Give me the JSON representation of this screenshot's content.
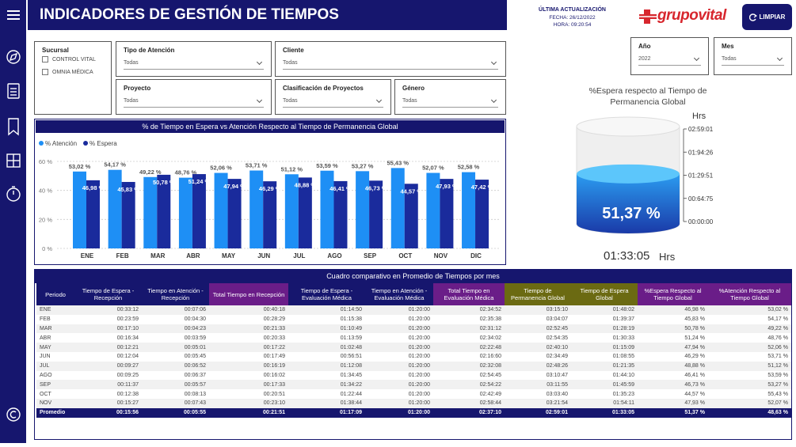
{
  "header": {
    "title": "INDICADORES DE GESTIÓN DE TIEMPOS",
    "update_title": "ÚLTIMA ACTUALIZACIÓN",
    "update_date": "FECHA: 26/12/2022",
    "update_time": "HORA: 09:20:54",
    "logo": "grupovital",
    "button": "LIMPIAR"
  },
  "filters": [
    {
      "label": "Sucursal",
      "options": [
        "CONTROL VITAL",
        "OMNIA MÉDICA"
      ]
    },
    {
      "label": "Tipo de Atención",
      "value": "Todas"
    },
    {
      "label": "Cliente",
      "value": "Todas"
    },
    {
      "label": "Proyecto",
      "value": "Todas"
    },
    {
      "label": "Clasificación de Proyectos",
      "value": "Todas"
    },
    {
      "label": "Género",
      "value": "Todas"
    },
    {
      "label": "Año",
      "value": "2022"
    },
    {
      "label": "Mes",
      "value": "Todas"
    }
  ],
  "chart_data": {
    "type": "bar",
    "title": "% de Tiempo en Espera vs Atención Respecto al Tiempo de Permanencia Global",
    "categories": [
      "ENE",
      "FEB",
      "MAR",
      "ABR",
      "MAY",
      "JUN",
      "JUL",
      "AGO",
      "SEP",
      "OCT",
      "NOV",
      "DIC"
    ],
    "series": [
      {
        "name": "% Atención",
        "color": "#1e8ff5",
        "values": [
          53.02,
          54.17,
          49.22,
          48.76,
          52.06,
          53.71,
          51.12,
          53.59,
          53.27,
          55.43,
          52.07,
          52.58
        ],
        "value_labels": [
          "53,02 %",
          "54,17 %",
          "49,22 %",
          "48,76 %",
          "52,06 %",
          "53,71 %",
          "51,12 %",
          "53,59 %",
          "53,27 %",
          "55,43 %",
          "52,07 %",
          "52,58 %"
        ]
      },
      {
        "name": "% Espera",
        "color": "#1a2b9c",
        "values": [
          46.98,
          45.83,
          50.78,
          51.24,
          47.94,
          46.29,
          48.88,
          46.41,
          46.73,
          44.57,
          47.93,
          47.42
        ],
        "value_labels": [
          "46,98 %",
          "45,83 %",
          "50,78 %",
          "51,24 %",
          "47,94 %",
          "46,29 %",
          "48,88 %",
          "46,41 %",
          "46,73 %",
          "44,57 %",
          "47,93 %",
          "47,42 %"
        ]
      }
    ],
    "ylim": [
      0,
      66
    ],
    "yticks": [
      {
        "value": 0,
        "label": "0 %"
      },
      {
        "value": 20,
        "label": "20 %"
      },
      {
        "value": 40,
        "label": "40 %"
      },
      {
        "value": 60,
        "label": "60 %"
      }
    ],
    "grid": true,
    "legend": "top-left"
  },
  "gauge": {
    "title": "%Espera respecto al Tiempo de Permanencia Global",
    "unit": "Hrs",
    "ticks": [
      "02:59:01",
      "01:94:26",
      "01:29:51",
      "00:64:75",
      "00:00:00"
    ],
    "value": 51.37,
    "value_label": "51,37 %",
    "total": "01:33:05",
    "total_unit": "Hrs"
  },
  "table": {
    "title": "Cuadro comparativo en Promedio de Tiempos por mes",
    "headers": [
      "Periodo",
      "Tiempo de Espera - Recepción",
      "Tiempo en Atención - Recepción",
      "Total Tiempo en Recepción",
      "Tiempo de Espera - Evaluación Médica",
      "Tiempo en Atención - Evaluación Médica",
      "Total Tiempo en Evaluación Médica",
      "Tiempo de Permanencia Global",
      "Tiempo de Espera Global",
      "%Espera Respecto al Tiempo Global",
      "%Atención Respecto al Tiempo Global"
    ],
    "rows": [
      [
        "ENE",
        "00:33:12",
        "00:07:06",
        "00:40:18",
        "01:14:50",
        "01:20:00",
        "02:34:52",
        "03:15:10",
        "01:48:02",
        "46,98 %",
        "53,02 %"
      ],
      [
        "FEB",
        "00:23:59",
        "00:04:30",
        "00:28:29",
        "01:15:38",
        "01:20:00",
        "02:35:38",
        "03:04:07",
        "01:39:37",
        "45,83 %",
        "54,17 %"
      ],
      [
        "MAR",
        "00:17:10",
        "00:04:23",
        "00:21:33",
        "01:10:49",
        "01:20:00",
        "02:31:12",
        "02:52:45",
        "01:28:19",
        "50,78 %",
        "49,22 %"
      ],
      [
        "ABR",
        "00:16:34",
        "00:03:59",
        "00:20:33",
        "01:13:59",
        "01:20:00",
        "02:34:02",
        "02:54:35",
        "01:30:33",
        "51,24 %",
        "48,76 %"
      ],
      [
        "MAY",
        "00:12:21",
        "00:05:01",
        "00:17:22",
        "01:02:48",
        "01:20:00",
        "02:22:48",
        "02:40:10",
        "01:15:09",
        "47,94 %",
        "52,06 %"
      ],
      [
        "JUN",
        "00:12:04",
        "00:05:45",
        "00:17:49",
        "00:56:51",
        "01:20:00",
        "02:16:60",
        "02:34:49",
        "01:08:55",
        "46,29 %",
        "53,71 %"
      ],
      [
        "JUL",
        "00:09:27",
        "00:06:52",
        "00:16:19",
        "01:12:08",
        "01:20:00",
        "02:32:08",
        "02:48:26",
        "01:21:35",
        "48,88 %",
        "51,12 %"
      ],
      [
        "AGO",
        "00:09:25",
        "00:06:37",
        "00:16:02",
        "01:34:45",
        "01:20:00",
        "02:54:45",
        "03:10:47",
        "01:44:10",
        "46,41 %",
        "53,59 %"
      ],
      [
        "SEP",
        "00:11:37",
        "00:05:57",
        "00:17:33",
        "01:34:22",
        "01:20:00",
        "02:54:22",
        "03:11:55",
        "01:45:59",
        "46,73 %",
        "53,27 %"
      ],
      [
        "OCT",
        "00:12:38",
        "00:08:13",
        "00:20:51",
        "01:22:44",
        "01:20:00",
        "02:42:49",
        "03:03:40",
        "01:35:23",
        "44,57 %",
        "55,43 %"
      ],
      [
        "NOV",
        "00:15:27",
        "00:07:43",
        "00:23:10",
        "01:38:44",
        "01:20:00",
        "02:58:44",
        "03:21:54",
        "01:54:11",
        "47,93 %",
        "52,07 %"
      ]
    ],
    "total": [
      "Promedio",
      "00:15:56",
      "00:05:55",
      "00:21:51",
      "01:17:09",
      "01:20:00",
      "02:37:10",
      "02:59:01",
      "01:33:05",
      "51,37 %",
      "48,63 %"
    ]
  }
}
